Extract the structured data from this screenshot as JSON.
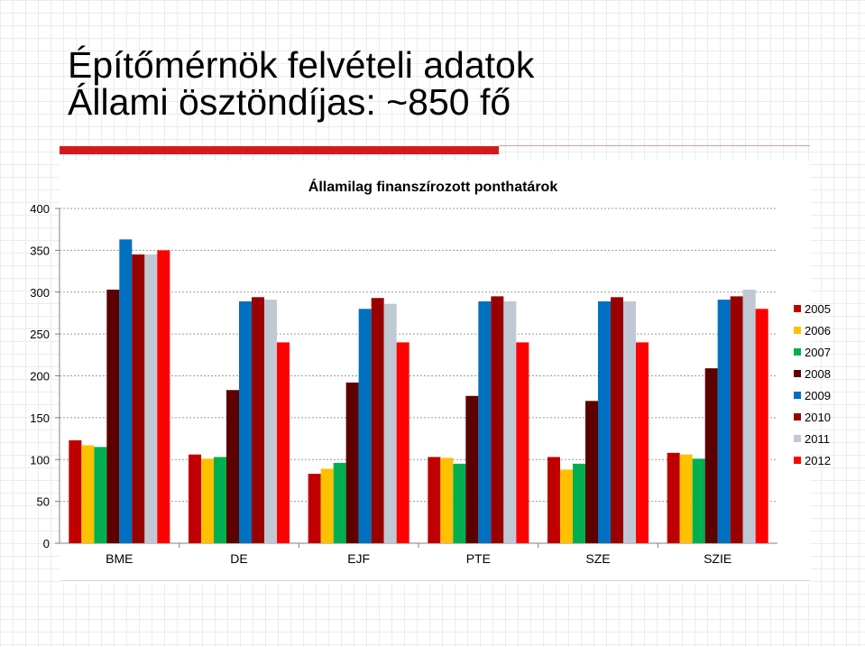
{
  "slide": {
    "title_line1": "Építőmérnök felvételi adatok",
    "title_line2": "Állami ösztöndíjas: ~850 fő"
  },
  "chart_data": {
    "type": "bar",
    "title": "Államilag finanszírozott ponthatárok",
    "xlabel": "",
    "ylabel": "",
    "ylim": [
      0,
      400
    ],
    "yticks": [
      0,
      50,
      100,
      150,
      200,
      250,
      300,
      350,
      400
    ],
    "grid": true,
    "legend_position": "right",
    "categories": [
      "BME",
      "DE",
      "EJF",
      "PTE",
      "SZE",
      "SZIE"
    ],
    "series": [
      {
        "name": "2005",
        "color": "#c00000",
        "values": [
          123,
          106,
          83,
          103,
          103,
          108
        ]
      },
      {
        "name": "2006",
        "color": "#ffc000",
        "values": [
          117,
          101,
          89,
          102,
          88,
          106
        ]
      },
      {
        "name": "2007",
        "color": "#00b050",
        "values": [
          115,
          103,
          96,
          95,
          95,
          101
        ]
      },
      {
        "name": "2008",
        "color": "#5c0000",
        "values": [
          303,
          183,
          192,
          176,
          170,
          209
        ]
      },
      {
        "name": "2009",
        "color": "#0070c0",
        "values": [
          363,
          289,
          280,
          289,
          289,
          291
        ]
      },
      {
        "name": "2010",
        "color": "#990000",
        "values": [
          345,
          294,
          293,
          295,
          294,
          295
        ]
      },
      {
        "name": "2011",
        "color": "#c0c8d4",
        "values": [
          345,
          291,
          286,
          289,
          289,
          303
        ]
      },
      {
        "name": "2012",
        "color": "#ff0000",
        "values": [
          350,
          240,
          240,
          240,
          240,
          280
        ]
      }
    ]
  }
}
